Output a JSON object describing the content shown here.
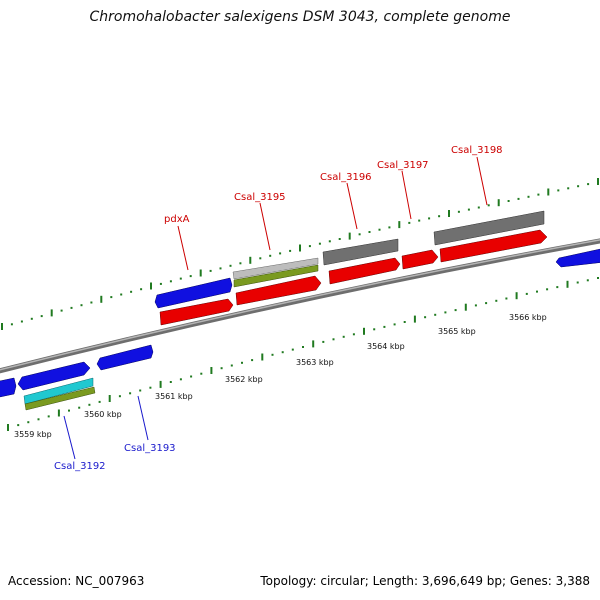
{
  "title": "Chromohalobacter salexigens DSM 3043, complete genome",
  "footer": {
    "accession": "Accession: NC_007963",
    "topology": "Topology: circular; Length: 3,696,649 bp; Genes: 3,388"
  },
  "colors": {
    "backbone": "#8a8a8a",
    "cds": "#e80000",
    "forward_gene": "#1010e0",
    "gray_gene": "#707070",
    "light_gray_gene": "#bdbdbd",
    "olive_gene": "#7a9a20",
    "cyan_gene": "#20c8d0",
    "tick": "#207a20"
  },
  "scale_labels": [
    "3559 kbp",
    "3560 kbp",
    "3561 kbp",
    "3562 kbp",
    "3563 kbp",
    "3564 kbp",
    "3565 kbp",
    "3566 kbp"
  ],
  "gene_labels": [
    {
      "text": "pdxA",
      "color": "red"
    },
    {
      "text": "Csal_3195",
      "color": "red"
    },
    {
      "text": "Csal_3196",
      "color": "red"
    },
    {
      "text": "Csal_3197",
      "color": "red"
    },
    {
      "text": "Csal_3198",
      "color": "red"
    },
    {
      "text": "Csal_3192",
      "color": "blue"
    },
    {
      "text": "Csal_3193",
      "color": "blue"
    }
  ]
}
